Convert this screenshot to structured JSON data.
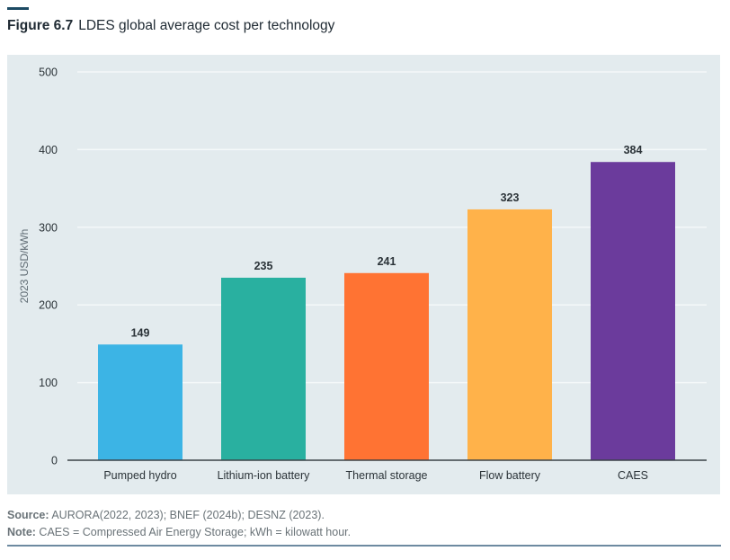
{
  "figure": {
    "number": "Figure 6.7",
    "title": "LDES global average cost per technology"
  },
  "chart_data": {
    "type": "bar",
    "title": "LDES global average cost per technology",
    "xlabel": "",
    "ylabel": "2023 USD/kWh",
    "ylim": [
      0,
      500
    ],
    "yticks": [
      0,
      100,
      200,
      300,
      400,
      500
    ],
    "grid": true,
    "legend": "none",
    "categories": [
      "Pumped hydro",
      "Lithium-ion battery",
      "Thermal storage",
      "Flow battery",
      "CAES"
    ],
    "values": [
      149,
      235,
      241,
      323,
      384
    ],
    "colors": [
      "#3cb4e5",
      "#29b0a0",
      "#ff7333",
      "#ffb24a",
      "#6b3b9c"
    ]
  },
  "footer": {
    "source_label": "Source:",
    "source_text": " AURORA(2022, 2023); BNEF (2024b); DESNZ (2023).",
    "note_label": "Note:",
    "note_text": " CAES = Compressed Air Energy Storage; kWh = kilowatt hour."
  }
}
